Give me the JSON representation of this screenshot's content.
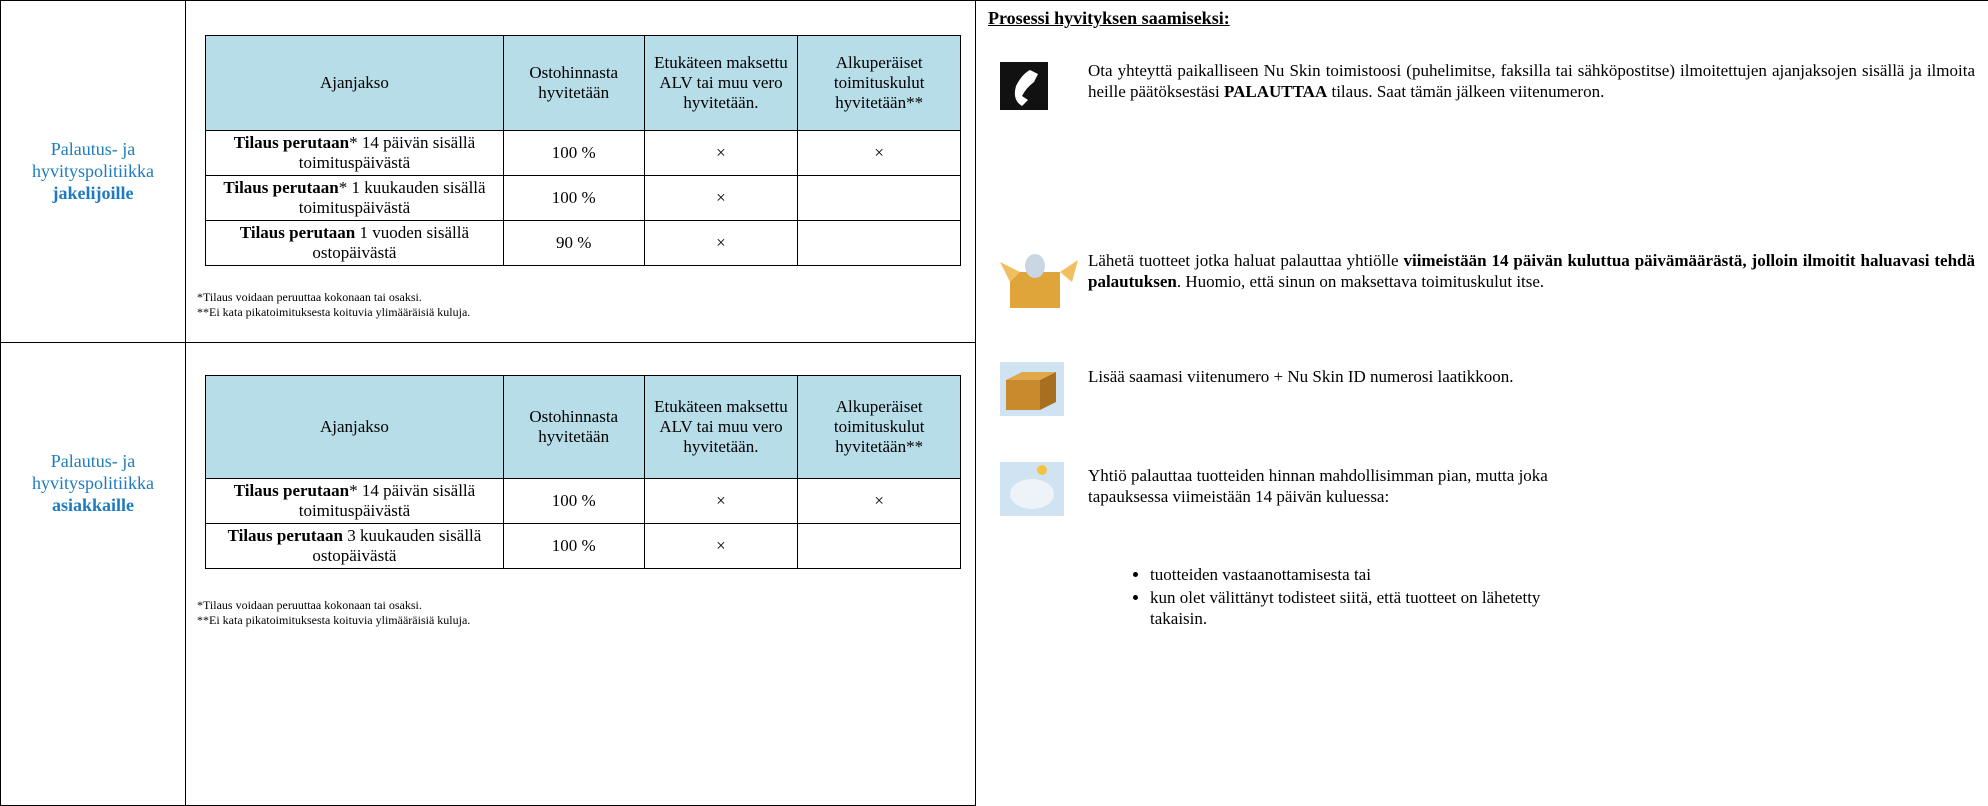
{
  "sections": [
    {
      "label": [
        "Palautus- ja",
        "hyvityspolitiikka",
        "jakelijoille"
      ],
      "table": {
        "header": [
          "Ajanjakso",
          "Ostohinnasta hyvitetään",
          "Etukäteen maksettu ALV tai muu vero hyvitetään.",
          "Alkuperäiset toimituskulut hyvitetään**"
        ],
        "rows": [
          [
            {
              "bold": "Tilaus perutaan",
              "text": "* 14 päivän sisällä toimituspäivästä"
            },
            "100 %",
            "×",
            "×"
          ],
          [
            {
              "bold": "Tilaus perutaan",
              "text": "* 1 kuukauden sisällä toimituspäivästä"
            },
            "100 %",
            "×",
            null
          ],
          [
            {
              "bold": "Tilaus perutaan",
              "text": " 1 vuoden sisällä ostopäivästä"
            },
            "90 %",
            "×",
            null
          ]
        ]
      },
      "footnotes": [
        "*Tilaus voidaan peruuttaa kokonaan tai osaksi.",
        "**Ei kata pikatoimituksesta koituvia ylimääräisiä kuluja."
      ]
    },
    {
      "label": [
        "Palautus- ja",
        "hyvityspolitiikka",
        "asiakkaille"
      ],
      "table": {
        "header": [
          "Ajanjakso",
          "Ostohinnasta hyvitetään",
          "Etukäteen maksettu ALV tai muu vero hyvitetään.",
          "Alkuperäiset toimituskulut hyvitetään**"
        ],
        "rows": [
          [
            {
              "bold": "Tilaus perutaan",
              "text": "* 14 päivän sisällä toimituspäivästä"
            },
            "100 %",
            "×",
            "×"
          ],
          [
            {
              "bold": "Tilaus perutaan",
              "text": " 3 kuukauden sisällä ostopäivästä"
            },
            "100 %",
            "×",
            null
          ]
        ]
      },
      "footnotes": [
        "*Tilaus voidaan peruuttaa kokonaan tai osaksi.",
        "**Ei kata pikatoimituksesta koituvia ylimääräisiä kuluja."
      ]
    }
  ],
  "process": {
    "title": "Prosessi hyvityksen saamiseksi:",
    "steps": [
      [
        {
          "text": "Ota yhteyttä paikalliseen Nu Skin toimistoosi (puhelimitse, faksilla tai sähköpostitse) ilmoitettujen ajanjaksojen sisällä ja ilmoita heille päätöksestäsi ",
          "bold": false
        },
        {
          "text": "PALAUTTAA",
          "bold": true
        },
        {
          "text": " tilaus. Saat tämän jälkeen viitenumeron.",
          "bold": false
        }
      ],
      [
        {
          "text": "Lähetä tuotteet jotka haluat palauttaa yhtiölle ",
          "bold": false
        },
        {
          "text": "viimeistään 14 päivän kuluttua päivämäärästä, jolloin ilmoitit haluavasi tehdä palautuksen",
          "bold": true
        },
        {
          "text": ". Huomio, että sinun on maksettava toimituskulut itse.",
          "bold": false
        }
      ],
      [
        {
          "text": "Lisää saamasi viitenumero + Nu Skin ID numerosi laatikkoon.",
          "bold": false
        }
      ],
      [
        {
          "text": "Yhtiö palauttaa tuotteiden hinnan mahdollisimman pian, mutta joka tapauksessa viimeistään 14 päivän kuluessa:",
          "bold": false
        }
      ]
    ],
    "bullets": [
      "tuotteiden vastaanottamisesta tai",
      "kun olet välittänyt todisteet siitä, että tuotteet on lähetetty takaisin."
    ]
  }
}
